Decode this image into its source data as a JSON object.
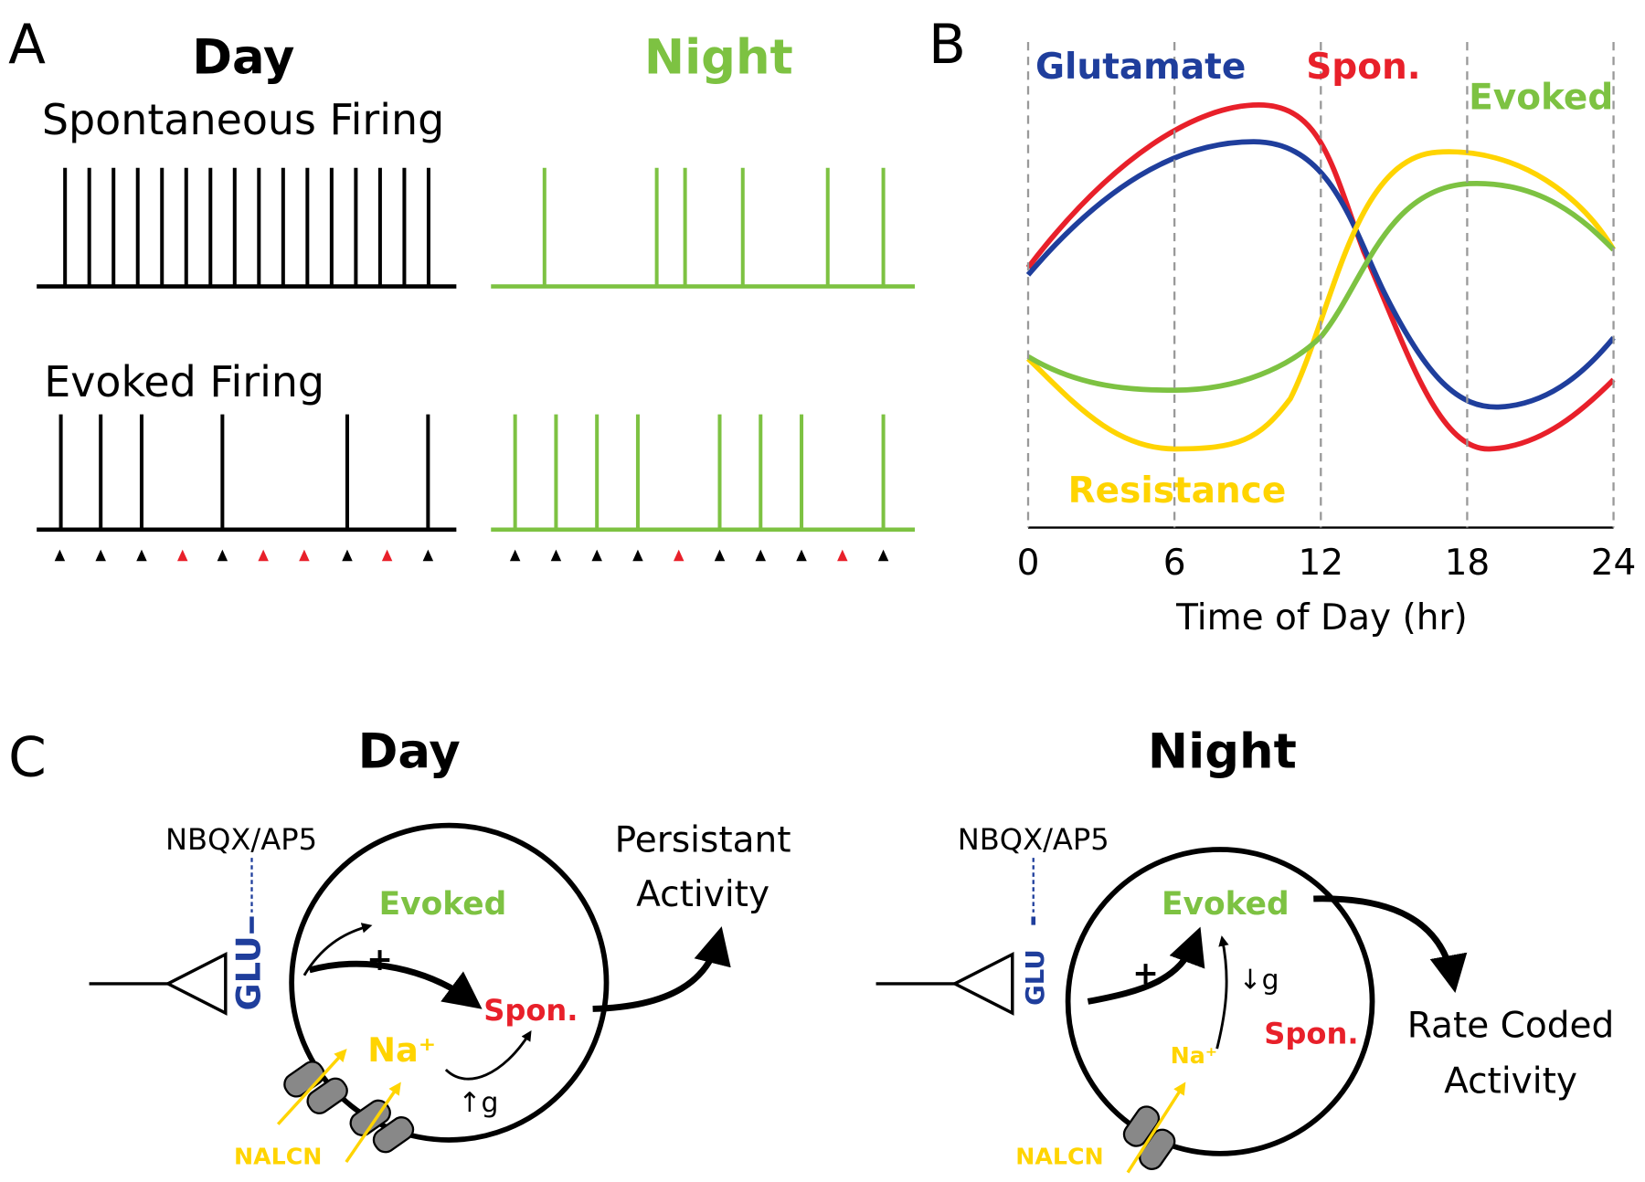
{
  "panel_a": {
    "label": "A",
    "day": "Day",
    "night": "Night",
    "spontaneous_title": "Spontaneous Firing",
    "evoked_title": "Evoked Firing"
  },
  "panel_b": {
    "label": "B",
    "xlabel": "Time of Day (hr)",
    "xlim": [
      0,
      24
    ],
    "xticks": [
      0,
      6,
      12,
      18,
      24
    ],
    "curve_labels": {
      "glutamate": "Glutamate",
      "spon": "Spon.",
      "evoked": "Evoked",
      "resistance": "Resistance"
    }
  },
  "panel_c": {
    "label": "C",
    "day": {
      "title": "Day",
      "drug": "NBQX/AP5",
      "glu": "GLU",
      "evoked": "Evoked",
      "spon": "Spon.",
      "plus": "+",
      "na": "Na⁺",
      "conductance": "↑g",
      "channel": "NALCN",
      "output": [
        "Persistant",
        "Activity"
      ]
    },
    "night": {
      "title": "Night",
      "drug": "NBQX/AP5",
      "glu": "GLU",
      "evoked": "Evoked",
      "spon": "Spon.",
      "plus": "+",
      "na": "Na⁺",
      "conductance": "↓g",
      "channel": "NALCN",
      "output": [
        "Rate Coded",
        "Activity"
      ]
    }
  }
}
